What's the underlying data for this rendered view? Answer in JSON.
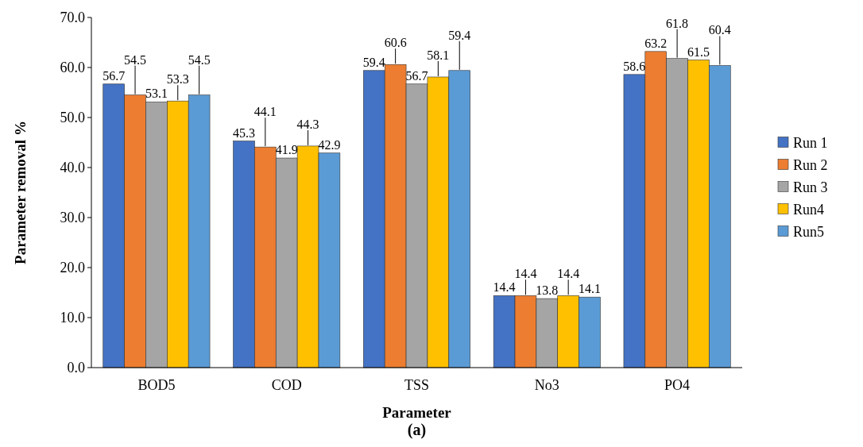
{
  "chart_data": {
    "type": "bar",
    "xlabel": "Parameter",
    "ylabel": "Parameter removal %",
    "annotations": [
      "(a)"
    ],
    "categories": [
      "BOD5",
      "COD",
      "TSS",
      "No3",
      "PO4"
    ],
    "series": [
      {
        "name": "Run 1",
        "color": "#4472c4",
        "values": [
          56.7,
          45.3,
          59.4,
          14.4,
          58.6
        ]
      },
      {
        "name": "Run 2",
        "color": "#ed7d31",
        "values": [
          54.5,
          44.1,
          60.6,
          14.4,
          63.2
        ]
      },
      {
        "name": "Run 3",
        "color": "#a5a5a5",
        "values": [
          53.1,
          41.9,
          56.7,
          13.8,
          61.8
        ]
      },
      {
        "name": "Run4",
        "color": "#ffc000",
        "values": [
          53.3,
          44.3,
          58.1,
          14.4,
          61.5
        ]
      },
      {
        "name": "Run5",
        "color": "#5b9bd5",
        "values": [
          54.5,
          42.9,
          59.4,
          14.1,
          60.4
        ]
      }
    ],
    "ylim": [
      0,
      70
    ],
    "yticks": [
      {
        "value": 0,
        "label": "0.0"
      },
      {
        "value": 10,
        "label": "10.0"
      },
      {
        "value": 20,
        "label": "20.0"
      },
      {
        "value": 30,
        "label": "30.0"
      },
      {
        "value": 40,
        "label": "40.0"
      },
      {
        "value": 50,
        "label": "50.0"
      },
      {
        "value": 60,
        "label": "60.0"
      },
      {
        "value": 70,
        "label": "70.0"
      }
    ],
    "data_labels": true,
    "legend": "right",
    "grid": false
  }
}
